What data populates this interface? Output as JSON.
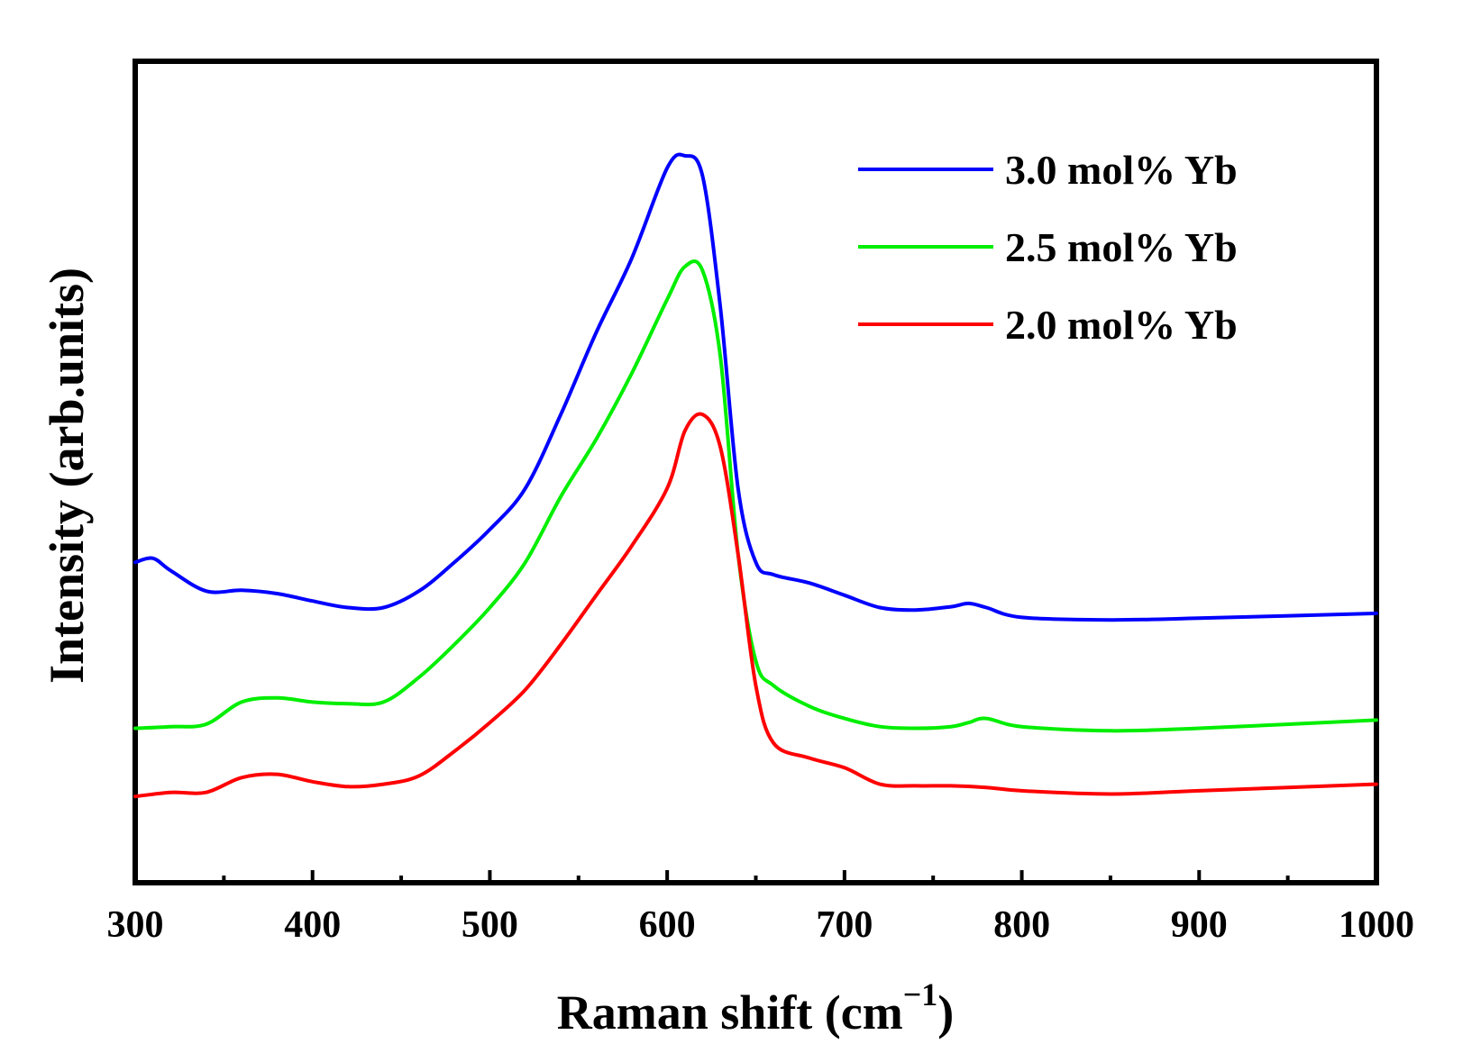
{
  "chart_data": {
    "type": "line",
    "title": "",
    "xlabel": "Raman shift (cm",
    "xlabel_sup": "−1",
    "xlabel_close": ")",
    "ylabel": "Intensity (arb.units)",
    "xlim": [
      300,
      1000
    ],
    "ylim": [
      0,
      100
    ],
    "xticks": [
      300,
      400,
      500,
      600,
      700,
      800,
      900,
      1000
    ],
    "xtick_labels": [
      "300",
      "400",
      "500",
      "600",
      "700",
      "800",
      "900",
      "1000"
    ],
    "yticks": [],
    "grid": false,
    "legend_position": "top-right",
    "series": [
      {
        "name": "3.0 mol% Yb",
        "color": "#0000ff",
        "x": [
          300,
          310,
          320,
          340,
          360,
          380,
          400,
          420,
          440,
          460,
          480,
          500,
          520,
          540,
          560,
          580,
          600,
          610,
          620,
          630,
          640,
          650,
          660,
          680,
          700,
          720,
          740,
          760,
          770,
          780,
          800,
          850,
          900,
          1000
        ],
        "y": [
          39,
          39.5,
          38,
          35.5,
          35.6,
          35.2,
          34.3,
          33.5,
          33.5,
          35.5,
          39,
          43,
          48,
          57,
          67,
          76,
          87,
          88.5,
          86,
          70,
          48,
          39,
          37.5,
          36.5,
          35,
          33.5,
          33.2,
          33.6,
          34,
          33.5,
          32.3,
          32,
          32.2,
          32.8
        ]
      },
      {
        "name": "2.5 mol% Yb",
        "color": "#00ee00",
        "x": [
          300,
          320,
          340,
          360,
          380,
          400,
          420,
          440,
          460,
          480,
          500,
          520,
          540,
          560,
          580,
          600,
          610,
          620,
          630,
          640,
          650,
          660,
          680,
          700,
          720,
          740,
          760,
          770,
          780,
          800,
          850,
          900,
          1000
        ],
        "y": [
          18.8,
          19,
          19.3,
          22,
          22.5,
          22,
          21.8,
          22,
          25,
          29,
          33.5,
          39,
          47,
          54,
          62,
          71,
          75,
          74.5,
          64,
          40,
          27,
          24,
          21.5,
          20,
          19,
          18.8,
          19,
          19.5,
          20,
          19,
          18.5,
          18.8,
          19.8
        ]
      },
      {
        "name": "2.0 mol% Yb",
        "color": "#ff0000",
        "x": [
          300,
          320,
          340,
          360,
          380,
          400,
          420,
          440,
          460,
          480,
          500,
          520,
          540,
          560,
          580,
          600,
          610,
          620,
          630,
          640,
          650,
          660,
          680,
          700,
          720,
          740,
          760,
          780,
          800,
          850,
          900,
          1000
        ],
        "y": [
          10.5,
          11,
          11,
          12.8,
          13.2,
          12.3,
          11.7,
          12,
          13,
          16,
          19.5,
          23.5,
          29,
          35,
          41,
          48,
          55,
          57,
          53,
          40,
          24,
          17,
          15.2,
          14,
          12,
          11.8,
          11.8,
          11.6,
          11.2,
          10.8,
          11.2,
          12
        ]
      }
    ]
  }
}
